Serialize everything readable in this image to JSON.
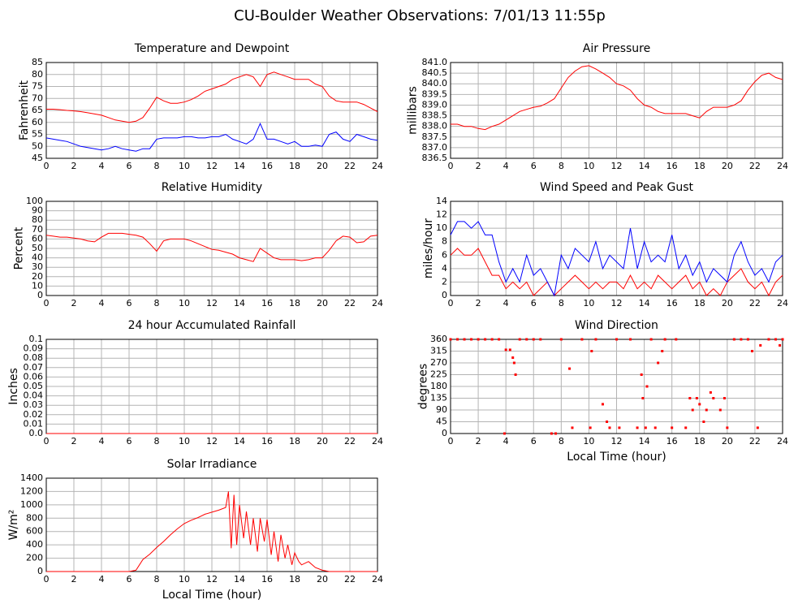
{
  "title": "CU-Boulder Weather Observations: 7/01/13 11:55p",
  "chart_data": [
    {
      "type": "line",
      "title": "Temperature and Dewpoint",
      "ylabel": "Fahrenheit",
      "grid": true,
      "xlim": [
        0,
        24
      ],
      "xticks": [
        0,
        2,
        4,
        6,
        8,
        10,
        12,
        14,
        16,
        18,
        20,
        22,
        24
      ],
      "ylim": [
        45,
        85
      ],
      "yticks": [
        45,
        50,
        55,
        60,
        65,
        70,
        75,
        80,
        85
      ],
      "x": [
        0,
        0.5,
        1,
        1.5,
        2,
        2.5,
        3,
        3.5,
        4,
        4.5,
        5,
        5.5,
        6,
        6.5,
        7,
        7.5,
        8,
        8.5,
        9,
        9.5,
        10,
        10.5,
        11,
        11.5,
        12,
        12.5,
        13,
        13.5,
        14,
        14.5,
        15,
        15.5,
        16,
        16.5,
        17,
        17.5,
        18,
        18.5,
        19,
        19.5,
        20,
        20.5,
        21,
        21.5,
        22,
        22.5,
        23,
        23.5,
        24
      ],
      "series": [
        {
          "color": "#ff0000",
          "values": [
            65.5,
            65.5,
            65.3,
            65,
            64.8,
            64.5,
            64,
            63.5,
            63,
            62,
            61,
            60.5,
            60,
            60.5,
            62,
            66,
            70.5,
            69,
            68,
            68,
            68.5,
            69.5,
            71,
            73,
            74,
            75,
            76,
            78,
            79,
            80,
            79,
            75,
            80,
            81,
            80,
            79,
            78,
            78,
            78,
            76,
            75,
            71,
            69,
            68.5,
            68.5,
            68.5,
            67.5,
            66,
            64.5
          ]
        },
        {
          "color": "#0000ff",
          "values": [
            53.5,
            53,
            52.5,
            52,
            51,
            50,
            49.5,
            49,
            48.5,
            49,
            50,
            49,
            48.5,
            48,
            49,
            49,
            53,
            53.5,
            53.5,
            53.5,
            54,
            54,
            53.5,
            53.5,
            54,
            54,
            55,
            53,
            52,
            51,
            53,
            59.5,
            53,
            53,
            52,
            51,
            52,
            50,
            50,
            50.5,
            50,
            55,
            56,
            53,
            52,
            55,
            54,
            53,
            52.5
          ]
        }
      ]
    },
    {
      "type": "line",
      "title": "Air Pressure",
      "ylabel": "millibars",
      "grid": true,
      "xlim": [
        0,
        24
      ],
      "xticks": [
        0,
        2,
        4,
        6,
        8,
        10,
        12,
        14,
        16,
        18,
        20,
        22,
        24
      ],
      "ylim": [
        836.5,
        841
      ],
      "yticks": [
        836.5,
        {
          "value": 837,
          "label": "837.0"
        },
        837.5,
        {
          "value": 838,
          "label": "838.0"
        },
        838.5,
        {
          "value": 839,
          "label": "839.0"
        },
        839.5,
        {
          "value": 840,
          "label": "840.0"
        },
        840.5,
        {
          "value": 841,
          "label": "841.0"
        }
      ],
      "x": [
        0,
        0.5,
        1,
        1.5,
        2,
        2.5,
        3,
        3.5,
        4,
        4.5,
        5,
        5.5,
        6,
        6.5,
        7,
        7.5,
        8,
        8.5,
        9,
        9.5,
        10,
        10.5,
        11,
        11.5,
        12,
        12.5,
        13,
        13.5,
        14,
        14.5,
        15,
        15.5,
        16,
        16.5,
        17,
        17.5,
        18,
        18.5,
        19,
        19.5,
        20,
        20.5,
        21,
        21.5,
        22,
        22.5,
        23,
        23.5,
        24
      ],
      "series": [
        {
          "color": "#ff0000",
          "values": [
            838.1,
            838.1,
            838.0,
            838.0,
            837.9,
            837.85,
            838.0,
            838.1,
            838.3,
            838.5,
            838.7,
            838.8,
            838.9,
            838.95,
            839.1,
            839.3,
            839.8,
            840.3,
            840.6,
            840.8,
            840.85,
            840.7,
            840.5,
            840.3,
            840.0,
            839.9,
            839.7,
            839.3,
            839.0,
            838.9,
            838.7,
            838.6,
            838.6,
            838.6,
            838.6,
            838.5,
            838.4,
            838.7,
            838.9,
            838.9,
            838.9,
            839.0,
            839.2,
            839.7,
            840.1,
            840.4,
            840.5,
            840.3,
            840.2
          ]
        }
      ]
    },
    {
      "type": "line",
      "title": "Relative Humidity",
      "ylabel": "Percent",
      "grid": true,
      "xlim": [
        0,
        24
      ],
      "xticks": [
        0,
        2,
        4,
        6,
        8,
        10,
        12,
        14,
        16,
        18,
        20,
        22,
        24
      ],
      "ylim": [
        0,
        100
      ],
      "yticks": [
        0,
        10,
        20,
        30,
        40,
        50,
        60,
        70,
        80,
        90,
        100
      ],
      "x": [
        0,
        0.5,
        1,
        1.5,
        2,
        2.5,
        3,
        3.5,
        4,
        4.5,
        5,
        5.5,
        6,
        6.5,
        7,
        7.5,
        8,
        8.5,
        9,
        9.5,
        10,
        10.5,
        11,
        11.5,
        12,
        12.5,
        13,
        13.5,
        14,
        14.5,
        15,
        15.5,
        16,
        16.5,
        17,
        17.5,
        18,
        18.5,
        19,
        19.5,
        20,
        20.5,
        21,
        21.5,
        22,
        22.5,
        23,
        23.5,
        24
      ],
      "series": [
        {
          "color": "#ff0000",
          "values": [
            64,
            63,
            62,
            62,
            61,
            60,
            58,
            57,
            62,
            66,
            66,
            66,
            65,
            64,
            62,
            55,
            47,
            58,
            60,
            60,
            60,
            58,
            55,
            52,
            49,
            48,
            46,
            44,
            40,
            38,
            36,
            50,
            45,
            40,
            38,
            38,
            38,
            37,
            38,
            40,
            40,
            48,
            58,
            63,
            62,
            56,
            57,
            63,
            64
          ]
        }
      ]
    },
    {
      "type": "line",
      "title": "Wind Speed and Peak Gust",
      "ylabel": "miles/hour",
      "grid": true,
      "xlim": [
        0,
        24
      ],
      "xticks": [
        0,
        2,
        4,
        6,
        8,
        10,
        12,
        14,
        16,
        18,
        20,
        22,
        24
      ],
      "ylim": [
        0,
        14
      ],
      "yticks": [
        0,
        2,
        4,
        6,
        8,
        10,
        12,
        14
      ],
      "x": [
        0,
        0.5,
        1,
        1.5,
        2,
        2.5,
        3,
        3.5,
        4,
        4.5,
        5,
        5.5,
        6,
        6.5,
        7,
        7.5,
        8,
        8.5,
        9,
        9.5,
        10,
        10.5,
        11,
        11.5,
        12,
        12.5,
        13,
        13.5,
        14,
        14.5,
        15,
        15.5,
        16,
        16.5,
        17,
        17.5,
        18,
        18.5,
        19,
        19.5,
        20,
        20.5,
        21,
        21.5,
        22,
        22.5,
        23,
        23.5,
        24
      ],
      "series": [
        {
          "color": "#ff0000",
          "values": [
            6,
            7,
            6,
            6,
            7,
            5,
            3,
            3,
            1,
            2,
            1,
            2,
            0,
            1,
            2,
            0,
            1,
            2,
            3,
            2,
            1,
            2,
            1,
            2,
            2,
            1,
            3,
            1,
            2,
            1,
            3,
            2,
            1,
            2,
            3,
            1,
            2,
            0,
            1,
            0,
            2,
            3,
            4,
            2,
            1,
            2,
            0,
            2,
            3
          ]
        },
        {
          "color": "#0000ff",
          "values": [
            9,
            11,
            11,
            10,
            11,
            9,
            9,
            5,
            2,
            4,
            2,
            6,
            3,
            4,
            2,
            0,
            6,
            4,
            7,
            6,
            5,
            8,
            4,
            6,
            5,
            4,
            10,
            4,
            8,
            5,
            6,
            5,
            9,
            4,
            6,
            3,
            5,
            2,
            4,
            3,
            2,
            6,
            8,
            5,
            3,
            4,
            2,
            5,
            6
          ]
        }
      ]
    },
    {
      "type": "line",
      "title": "24 hour Accumulated Rainfall",
      "ylabel": "Inches",
      "grid": true,
      "xlim": [
        0,
        24
      ],
      "xticks": [
        0,
        2,
        4,
        6,
        8,
        10,
        12,
        14,
        16,
        18,
        20,
        22,
        24
      ],
      "ylim": [
        0,
        0.1
      ],
      "yticks": [
        {
          "value": 0,
          "label": "0.0"
        },
        0.01,
        0.02,
        0.03,
        0.04,
        0.05,
        0.06,
        0.07,
        0.08,
        0.09,
        0.1
      ],
      "x": [
        0,
        24
      ],
      "series": [
        {
          "color": "#ff0000",
          "values": [
            0,
            0
          ]
        }
      ]
    },
    {
      "type": "scatter",
      "title": "Wind Direction",
      "ylabel": "degrees",
      "xlabel": "Local Time (hour)",
      "grid": true,
      "color": "#ff0000",
      "xlim": [
        0,
        24
      ],
      "xticks": [
        0,
        2,
        4,
        6,
        8,
        10,
        12,
        14,
        16,
        18,
        20,
        22,
        24
      ],
      "ylim": [
        0,
        360
      ],
      "yticks": [
        0,
        45,
        90,
        135,
        180,
        225,
        270,
        315,
        360
      ],
      "x": [
        0,
        0.5,
        1,
        1.5,
        2,
        2.5,
        3,
        3.5,
        3.9,
        4,
        4.3,
        4.5,
        4.6,
        4.7,
        5,
        5.5,
        6,
        6.5,
        7.3,
        7.6,
        8,
        8.6,
        8.8,
        9.5,
        10.1,
        10.2,
        10.5,
        11,
        11.3,
        11.5,
        12,
        12.2,
        13,
        13.5,
        13.8,
        13.9,
        14.1,
        14.2,
        14.5,
        14.8,
        15,
        15.3,
        15.5,
        16,
        16.3,
        17,
        17.3,
        17.5,
        17.8,
        18,
        18.3,
        18.5,
        18.8,
        19,
        19.5,
        19.8,
        20,
        20.5,
        21,
        21.5,
        21.8,
        22.2,
        22.4,
        23,
        23.5,
        23.8,
        24
      ],
      "values": [
        360,
        360,
        360,
        360,
        360,
        360,
        360,
        360,
        0,
        320,
        320,
        290,
        270,
        225,
        360,
        360,
        360,
        360,
        0,
        0,
        360,
        248,
        22,
        360,
        22,
        315,
        360,
        112,
        45,
        22,
        360,
        22,
        360,
        22,
        225,
        135,
        22,
        180,
        360,
        22,
        270,
        315,
        360,
        22,
        360,
        22,
        135,
        90,
        135,
        112,
        45,
        90,
        157,
        135,
        90,
        135,
        22,
        360,
        360,
        360,
        315,
        22,
        337,
        360,
        360,
        337,
        360
      ]
    },
    {
      "type": "line",
      "title": "Solar Irradiance",
      "ylabel": "W/m²",
      "xlabel": "Local Time (hour)",
      "grid": true,
      "xlim": [
        0,
        24
      ],
      "xticks": [
        0,
        2,
        4,
        6,
        8,
        10,
        12,
        14,
        16,
        18,
        20,
        22,
        24
      ],
      "ylim": [
        0,
        1400
      ],
      "yticks": [
        0,
        200,
        400,
        600,
        800,
        1000,
        1200,
        1400
      ],
      "x": [
        0,
        1,
        2,
        3,
        4,
        5,
        6,
        6.5,
        7,
        7.5,
        8,
        8.5,
        9,
        9.5,
        10,
        10.5,
        11,
        11.5,
        12,
        12.5,
        13,
        13.2,
        13.4,
        13.6,
        13.8,
        14,
        14.3,
        14.5,
        14.8,
        15,
        15.3,
        15.5,
        15.8,
        16,
        16.3,
        16.5,
        16.8,
        17,
        17.3,
        17.5,
        17.8,
        18,
        18.3,
        18.5,
        19,
        19.5,
        20,
        20.5,
        21,
        22,
        23,
        24
      ],
      "series": [
        {
          "color": "#ff0000",
          "values": [
            0,
            0,
            0,
            0,
            0,
            0,
            0,
            20,
            180,
            260,
            360,
            450,
            550,
            640,
            720,
            770,
            810,
            860,
            890,
            920,
            960,
            1200,
            350,
            1150,
            400,
            1000,
            500,
            900,
            400,
            800,
            300,
            800,
            450,
            780,
            250,
            600,
            150,
            550,
            200,
            400,
            100,
            280,
            150,
            100,
            150,
            60,
            20,
            0,
            0,
            0,
            0,
            0
          ]
        }
      ]
    }
  ]
}
